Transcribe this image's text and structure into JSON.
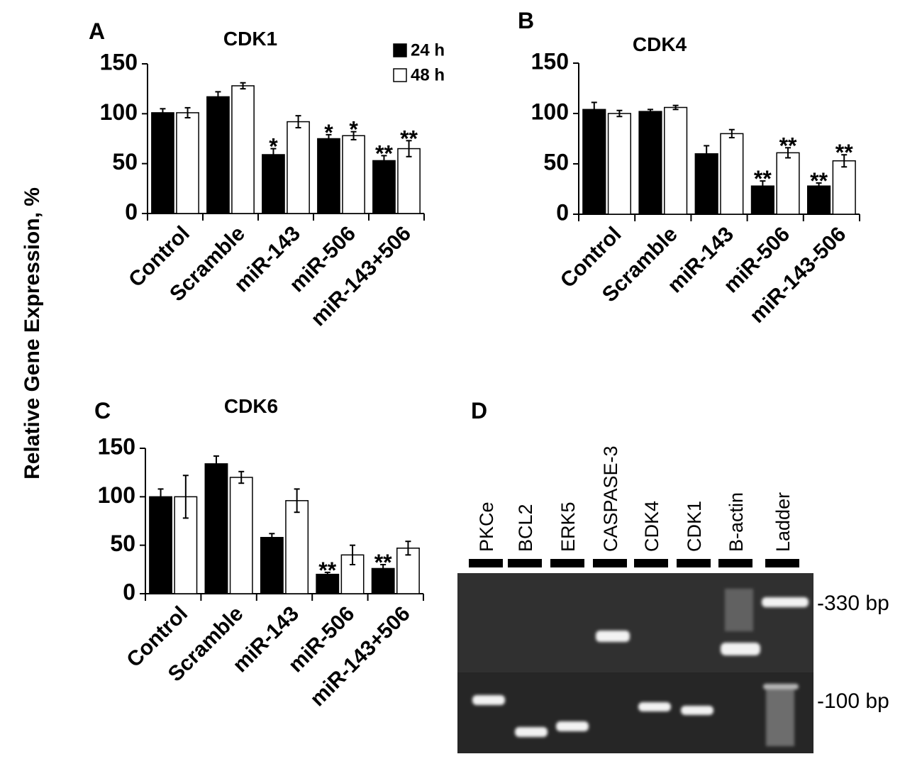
{
  "ylabel": "Relative Gene Expression, %",
  "chart_data": [
    {
      "type": "bar",
      "panel": "A",
      "title": "CDK1",
      "categories": [
        "Control",
        "Scramble",
        "miR-143",
        "miR-506",
        "miR-143+506"
      ],
      "series": [
        {
          "name": "24 h",
          "color": "#000000",
          "values": [
            101,
            117,
            59,
            75,
            53
          ],
          "errors": [
            4,
            5,
            6,
            4,
            5
          ],
          "annotations": [
            null,
            null,
            "*",
            "*",
            "**"
          ]
        },
        {
          "name": "48 h",
          "color": "#ffffff",
          "values": [
            101,
            128,
            92,
            78,
            65
          ],
          "errors": [
            5,
            3,
            6,
            4,
            8
          ],
          "annotations": [
            null,
            null,
            null,
            "*",
            "**"
          ]
        }
      ],
      "ylim": [
        0,
        150
      ],
      "yticks": [
        0,
        50,
        100,
        150
      ],
      "legend": "top-right"
    },
    {
      "type": "bar",
      "panel": "B",
      "title": "CDK4",
      "categories": [
        "Control",
        "Scramble",
        "miR-143",
        "miR-506",
        "miR-143-506"
      ],
      "series": [
        {
          "color": "#000000",
          "values": [
            104,
            102,
            60,
            28,
            28
          ],
          "errors": [
            7,
            2,
            8,
            5,
            3
          ],
          "annotations": [
            null,
            null,
            null,
            "**",
            "**"
          ]
        },
        {
          "color": "#ffffff",
          "values": [
            100,
            106,
            80,
            61,
            53
          ],
          "errors": [
            3,
            2,
            4,
            5,
            6
          ],
          "annotations": [
            null,
            null,
            null,
            "**",
            "**"
          ]
        }
      ],
      "ylim": [
        0,
        150
      ],
      "yticks": [
        0,
        50,
        100,
        150
      ]
    },
    {
      "type": "bar",
      "panel": "C",
      "title": "CDK6",
      "categories": [
        "Control",
        "Scramble",
        "miR-143",
        "miR-506",
        "miR-143+506"
      ],
      "series": [
        {
          "color": "#000000",
          "values": [
            100,
            134,
            58,
            20,
            26
          ],
          "errors": [
            8,
            8,
            4,
            2,
            4
          ],
          "annotations": [
            null,
            null,
            null,
            "**",
            "**"
          ]
        },
        {
          "color": "#ffffff",
          "values": [
            100,
            120,
            96,
            40,
            47
          ],
          "errors": [
            22,
            6,
            12,
            10,
            7
          ],
          "annotations": [
            null,
            null,
            null,
            null,
            null
          ]
        }
      ],
      "ylim": [
        0,
        150
      ],
      "yticks": [
        0,
        50,
        100,
        150
      ]
    }
  ],
  "gel": {
    "panel": "D",
    "lanes": [
      "PKCe",
      "BCL2",
      "ERK5",
      "CASPASE-3",
      "CDK4",
      "CDK1",
      "B-actin",
      "Ladder"
    ],
    "markers": [
      "-330 bp",
      "-100 bp"
    ]
  }
}
